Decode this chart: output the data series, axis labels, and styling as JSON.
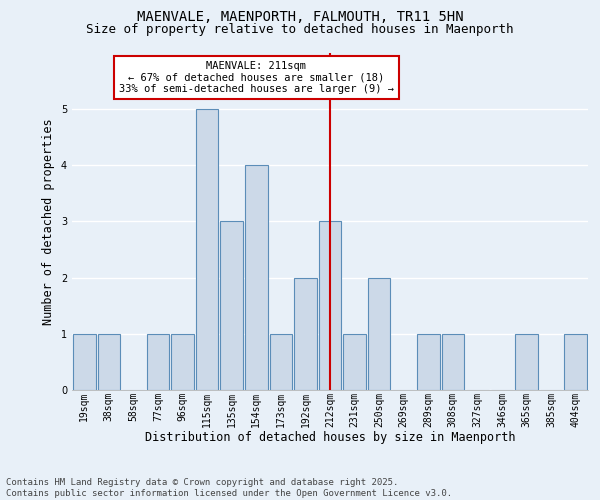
{
  "title_line1": "MAENVALE, MAENPORTH, FALMOUTH, TR11 5HN",
  "title_line2": "Size of property relative to detached houses in Maenporth",
  "xlabel": "Distribution of detached houses by size in Maenporth",
  "ylabel": "Number of detached properties",
  "categories": [
    "19sqm",
    "38sqm",
    "58sqm",
    "77sqm",
    "96sqm",
    "115sqm",
    "135sqm",
    "154sqm",
    "173sqm",
    "192sqm",
    "212sqm",
    "231sqm",
    "250sqm",
    "269sqm",
    "289sqm",
    "308sqm",
    "327sqm",
    "346sqm",
    "365sqm",
    "385sqm",
    "404sqm"
  ],
  "values": [
    1,
    1,
    0,
    1,
    1,
    5,
    3,
    4,
    1,
    2,
    3,
    1,
    2,
    0,
    1,
    1,
    0,
    0,
    1,
    0,
    1
  ],
  "bar_color": "#ccd9e8",
  "bar_edge_color": "#5b8db8",
  "bar_edge_width": 0.8,
  "vline_x_index": 10,
  "vline_color": "#cc0000",
  "annotation_box_color": "#ffffff",
  "annotation_box_edge_color": "#cc0000",
  "annotation_text": "MAENVALE: 211sqm\n← 67% of detached houses are smaller (18)\n33% of semi-detached houses are larger (9) →",
  "ylim": [
    0,
    6
  ],
  "yticks": [
    0,
    1,
    2,
    3,
    4,
    5,
    6
  ],
  "background_color": "#e8f0f8",
  "plot_background_color": "#e8f0f8",
  "grid_color": "#ffffff",
  "footer": "Contains HM Land Registry data © Crown copyright and database right 2025.\nContains public sector information licensed under the Open Government Licence v3.0.",
  "title_fontsize": 10,
  "subtitle_fontsize": 9,
  "axis_label_fontsize": 8.5,
  "tick_fontsize": 7,
  "annotation_fontsize": 7.5,
  "footer_fontsize": 6.5
}
